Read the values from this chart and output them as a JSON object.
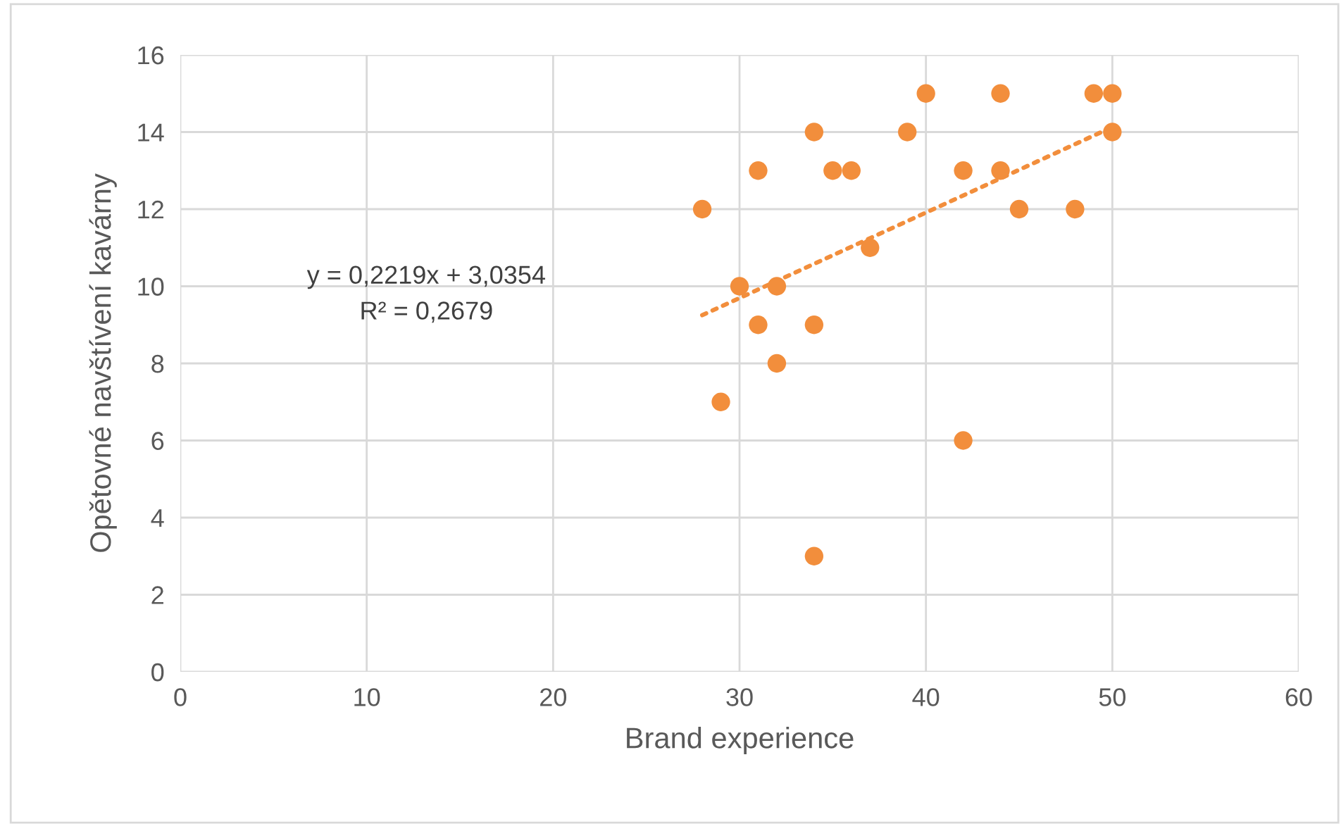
{
  "chart_data": {
    "type": "scatter",
    "xlabel": "Brand experience",
    "ylabel": "Opětovné navštívení kavárny",
    "xlim": [
      0,
      60
    ],
    "xticks": [
      0,
      10,
      20,
      30,
      40,
      50,
      60
    ],
    "ylim": [
      0,
      16
    ],
    "yticks": [
      0,
      2,
      4,
      6,
      8,
      10,
      12,
      14,
      16
    ],
    "grid": true,
    "legend": false,
    "series": [
      {
        "color": "#f28e3c",
        "marker": "circle",
        "x": [
          28,
          29,
          30,
          31,
          31,
          32,
          32,
          34,
          34,
          34,
          35,
          36,
          37,
          39,
          40,
          42,
          42,
          44,
          44,
          45,
          48,
          49,
          50,
          50
        ],
        "values": [
          12,
          7,
          10,
          13,
          9,
          10,
          8,
          14,
          9,
          3,
          13,
          13,
          11,
          14,
          15,
          13,
          6,
          15,
          13,
          12,
          12,
          15,
          15,
          14
        ]
      },
      {
        "type": "line",
        "color": "#f28e3c",
        "line_style": "dotted",
        "x": [
          28,
          50
        ],
        "values": [
          9.25,
          14.13
        ]
      }
    ],
    "annotations": [
      "y = 0,2219x + 3,0354",
      "R² = 0,2679"
    ]
  }
}
